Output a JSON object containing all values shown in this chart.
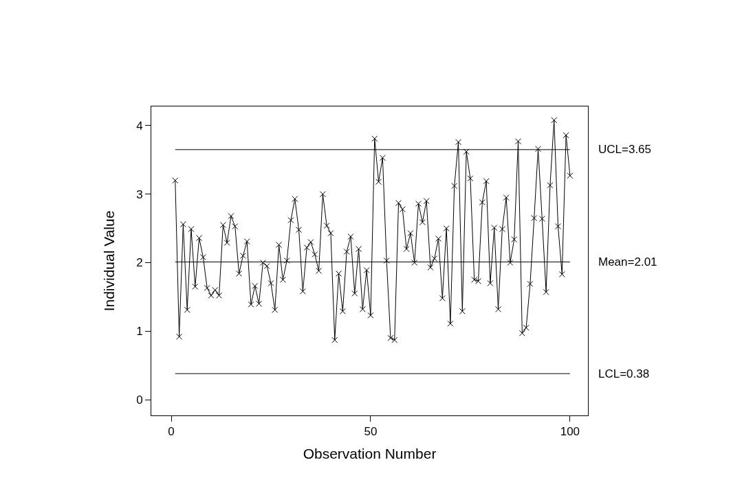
{
  "chart_data": {
    "type": "line",
    "xlabel": "Observation Number",
    "ylabel": "Individual Value",
    "x": [
      1,
      2,
      3,
      4,
      5,
      6,
      7,
      8,
      9,
      10,
      11,
      12,
      13,
      14,
      15,
      16,
      17,
      18,
      19,
      20,
      21,
      22,
      23,
      24,
      25,
      26,
      27,
      28,
      29,
      30,
      31,
      32,
      33,
      34,
      35,
      36,
      37,
      38,
      39,
      40,
      41,
      42,
      43,
      44,
      45,
      46,
      47,
      48,
      49,
      50,
      51,
      52,
      53,
      54,
      55,
      56,
      57,
      58,
      59,
      60,
      61,
      62,
      63,
      64,
      65,
      66,
      67,
      68,
      69,
      70,
      71,
      72,
      73,
      74,
      75,
      76,
      77,
      78,
      79,
      80,
      81,
      82,
      83,
      84,
      85,
      86,
      87,
      88,
      89,
      90,
      91,
      92,
      93,
      94,
      95,
      96,
      97,
      98,
      99,
      100
    ],
    "series": [
      {
        "color": "#000000",
        "values": [
          3.2,
          0.92,
          2.56,
          1.31,
          2.49,
          1.65,
          2.36,
          2.08,
          1.63,
          1.52,
          1.6,
          1.52,
          2.55,
          2.29,
          2.68,
          2.53,
          1.84,
          2.1,
          2.31,
          1.39,
          1.66,
          1.4,
          2.0,
          1.95,
          1.7,
          1.31,
          2.26,
          1.75,
          2.03,
          2.62,
          2.93,
          2.48,
          1.58,
          2.22,
          2.3,
          2.12,
          1.88,
          3.0,
          2.54,
          2.43,
          0.87,
          1.84,
          1.29,
          2.16,
          2.38,
          1.55,
          2.2,
          1.32,
          1.89,
          1.23,
          3.81,
          3.18,
          3.53,
          2.03,
          0.9,
          0.87,
          2.87,
          2.78,
          2.2,
          2.43,
          2.0,
          2.86,
          2.59,
          2.9,
          1.93,
          2.06,
          2.35,
          1.48,
          2.5,
          1.11,
          3.12,
          3.76,
          1.29,
          3.62,
          3.23,
          1.75,
          1.73,
          2.88,
          3.19,
          1.7,
          2.51,
          1.32,
          2.49,
          2.95,
          2.0,
          2.34,
          3.77,
          0.97,
          1.05,
          1.69,
          2.65,
          3.66,
          2.64,
          1.57,
          3.13,
          4.08,
          2.53,
          1.83,
          3.86,
          3.27
        ]
      }
    ],
    "xlim": [
      -5,
      104.5
    ],
    "ylim": [
      -0.23,
      4.28
    ],
    "xticks": [
      0,
      50,
      100
    ],
    "yticks": [
      0,
      1,
      2,
      3,
      4
    ],
    "ref_lines": [
      {
        "axis": "y",
        "value": 3.65,
        "label": "UCL=3.65"
      },
      {
        "axis": "y",
        "value": 2.01,
        "label": "Mean=2.01"
      },
      {
        "axis": "y",
        "value": 0.38,
        "label": "LCL=0.38"
      }
    ],
    "marker": "cross"
  }
}
